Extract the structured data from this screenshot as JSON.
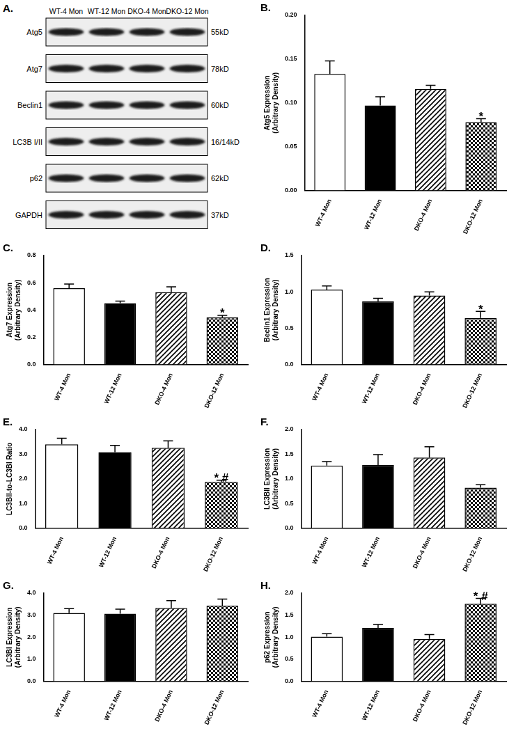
{
  "blot": {
    "panel": "A.",
    "lanes": [
      "WT-4 Mon",
      "WT-12 Mon",
      "DKO-4 Mon",
      "DKO-12 Mon"
    ],
    "rows": [
      {
        "label": "Atg5",
        "size": "55kD"
      },
      {
        "label": "Atg7",
        "size": "78kD"
      },
      {
        "label": "Beclin1",
        "size": "60kD"
      },
      {
        "label": "LC3B I/II",
        "size": "16/14kD"
      },
      {
        "label": "p62",
        "size": "62kD"
      },
      {
        "label": "GAPDH",
        "size": "37kD"
      }
    ]
  },
  "chart_data": [
    {
      "panel": "B.",
      "type": "bar",
      "y_label": [
        "Atg5 Expression",
        "(Arbitrary Density)"
      ],
      "categories": [
        "WT-4 Mon",
        "WT-12 Mon",
        "DKO-4 Mon",
        "DKO-12 Mon"
      ],
      "values": [
        0.133,
        0.097,
        0.116,
        0.078
      ],
      "errors": [
        0.015,
        0.01,
        0.004,
        0.004
      ],
      "colors": [
        "#ffffff",
        "#000000",
        "#000000",
        "#000000"
      ],
      "ylim": [
        0,
        0.2
      ],
      "yticks": [
        {
          "value": 0,
          "label": "0.00"
        },
        {
          "value": 0.05,
          "label": "0.05"
        },
        {
          "value": 0.1,
          "label": "0.10"
        },
        {
          "value": 0.15,
          "label": "0.15"
        },
        {
          "value": 0.2,
          "label": "0.20"
        }
      ],
      "annotations": [
        {
          "category": "DKO-12 Mon",
          "text": "*"
        }
      ],
      "grid": false
    },
    {
      "panel": "C.",
      "type": "bar",
      "y_label": [
        "Atg7 Expression",
        "(Arbitrary Density)"
      ],
      "categories": [
        "WT-4 Mon",
        "WT-12 Mon",
        "DKO-4 Mon",
        "DKO-12 Mon"
      ],
      "values": [
        0.56,
        0.45,
        0.53,
        0.345
      ],
      "errors": [
        0.03,
        0.015,
        0.04,
        0.015
      ],
      "colors": [
        "#ffffff",
        "#000000",
        "#000000",
        "#000000"
      ],
      "ylim": [
        0,
        0.8
      ],
      "yticks": [
        {
          "value": 0,
          "label": "0.0"
        },
        {
          "value": 0.2,
          "label": "0.2"
        },
        {
          "value": 0.4,
          "label": "0.4"
        },
        {
          "value": 0.6,
          "label": "0.6"
        },
        {
          "value": 0.8,
          "label": "0.8"
        }
      ],
      "annotations": [
        {
          "category": "DKO-12 Mon",
          "text": "*"
        }
      ],
      "grid": false
    },
    {
      "panel": "D.",
      "type": "bar",
      "y_label": [
        "Beclin1 Expression",
        "(Arbitrary Density)"
      ],
      "categories": [
        "WT-4 Mon",
        "WT-12 Mon",
        "DKO-4 Mon",
        "DKO-12 Mon"
      ],
      "values": [
        1.03,
        0.87,
        0.95,
        0.64
      ],
      "errors": [
        0.05,
        0.04,
        0.05,
        0.09
      ],
      "colors": [
        "#ffffff",
        "#000000",
        "#000000",
        "#000000"
      ],
      "ylim": [
        0,
        1.5
      ],
      "yticks": [
        {
          "value": 0,
          "label": "0.0"
        },
        {
          "value": 0.5,
          "label": "0.5"
        },
        {
          "value": 1,
          "label": "1.0"
        },
        {
          "value": 1.5,
          "label": "1.5"
        }
      ],
      "annotations": [
        {
          "category": "DKO-12 Mon",
          "text": "*"
        }
      ],
      "grid": false
    },
    {
      "panel": "E.",
      "type": "bar",
      "y_label": [
        "LC3BII-to-LC3BI Ratio"
      ],
      "categories": [
        "WT-4 Mon",
        "WT-12 Mon",
        "DKO-4 Mon",
        "DKO-12 Mon"
      ],
      "values": [
        3.4,
        3.08,
        3.26,
        1.87
      ],
      "errors": [
        0.25,
        0.28,
        0.28,
        0.07
      ],
      "colors": [
        "#ffffff",
        "#000000",
        "#000000",
        "#000000"
      ],
      "ylim": [
        0,
        4
      ],
      "yticks": [
        {
          "value": 0,
          "label": "0.0"
        },
        {
          "value": 1,
          "label": "1.0"
        },
        {
          "value": 2,
          "label": "2.0"
        },
        {
          "value": 3,
          "label": "3.0"
        },
        {
          "value": 4,
          "label": "4.0"
        }
      ],
      "annotations": [
        {
          "category": "DKO-12 Mon",
          "text": "* #"
        }
      ],
      "grid": false
    },
    {
      "panel": "F.",
      "type": "bar",
      "y_label": [
        "LC3BII Expression",
        "(Arbitrary Density)"
      ],
      "categories": [
        "WT-4 Mon",
        "WT-12 Mon",
        "DKO-4 Mon",
        "DKO-12 Mon"
      ],
      "values": [
        1.27,
        1.28,
        1.43,
        0.82
      ],
      "errors": [
        0.08,
        0.21,
        0.22,
        0.06
      ],
      "colors": [
        "#ffffff",
        "#000000",
        "#000000",
        "#000000"
      ],
      "ylim": [
        0,
        2
      ],
      "yticks": [
        {
          "value": 0,
          "label": "0.0"
        },
        {
          "value": 0.5,
          "label": "0.5"
        },
        {
          "value": 1,
          "label": "1.0"
        },
        {
          "value": 1.5,
          "label": "1.5"
        },
        {
          "value": 2,
          "label": "2.0"
        }
      ],
      "annotations": [],
      "grid": false
    },
    {
      "panel": "G.",
      "type": "bar",
      "y_label": [
        "LC3BI Expression",
        "(Arbitrary Density)"
      ],
      "categories": [
        "WT-4 Mon",
        "WT-12 Mon",
        "DKO-4 Mon",
        "DKO-12 Mon"
      ],
      "values": [
        3.1,
        3.07,
        3.33,
        3.43
      ],
      "errors": [
        0.2,
        0.2,
        0.33,
        0.3
      ],
      "colors": [
        "#ffffff",
        "#000000",
        "#000000",
        "#000000"
      ],
      "ylim": [
        0,
        4
      ],
      "yticks": [
        {
          "value": 0,
          "label": "0.0"
        },
        {
          "value": 1,
          "label": "1.0"
        },
        {
          "value": 2,
          "label": "2.0"
        },
        {
          "value": 3,
          "label": "3.0"
        },
        {
          "value": 4,
          "label": "4.0"
        }
      ],
      "annotations": [],
      "grid": false
    },
    {
      "panel": "H.",
      "type": "bar",
      "y_label": [
        "p62 Expression",
        "(Arbitrary Density)"
      ],
      "categories": [
        "WT-4 Mon",
        "WT-12 Mon",
        "DKO-4 Mon",
        "DKO-12 Mon"
      ],
      "values": [
        1.01,
        1.21,
        0.96,
        1.76
      ],
      "errors": [
        0.07,
        0.08,
        0.1,
        0.12
      ],
      "colors": [
        "#ffffff",
        "#000000",
        "#000000",
        "#000000"
      ],
      "ylim": [
        0,
        2
      ],
      "yticks": [
        {
          "value": 0,
          "label": "0.0"
        },
        {
          "value": 0.5,
          "label": "0.5"
        },
        {
          "value": 1,
          "label": "1.0"
        },
        {
          "value": 1.5,
          "label": "1.5"
        },
        {
          "value": 2,
          "label": "2.0"
        }
      ],
      "annotations": [
        {
          "category": "DKO-12 Mon",
          "text": "* #"
        }
      ],
      "grid": false
    }
  ]
}
